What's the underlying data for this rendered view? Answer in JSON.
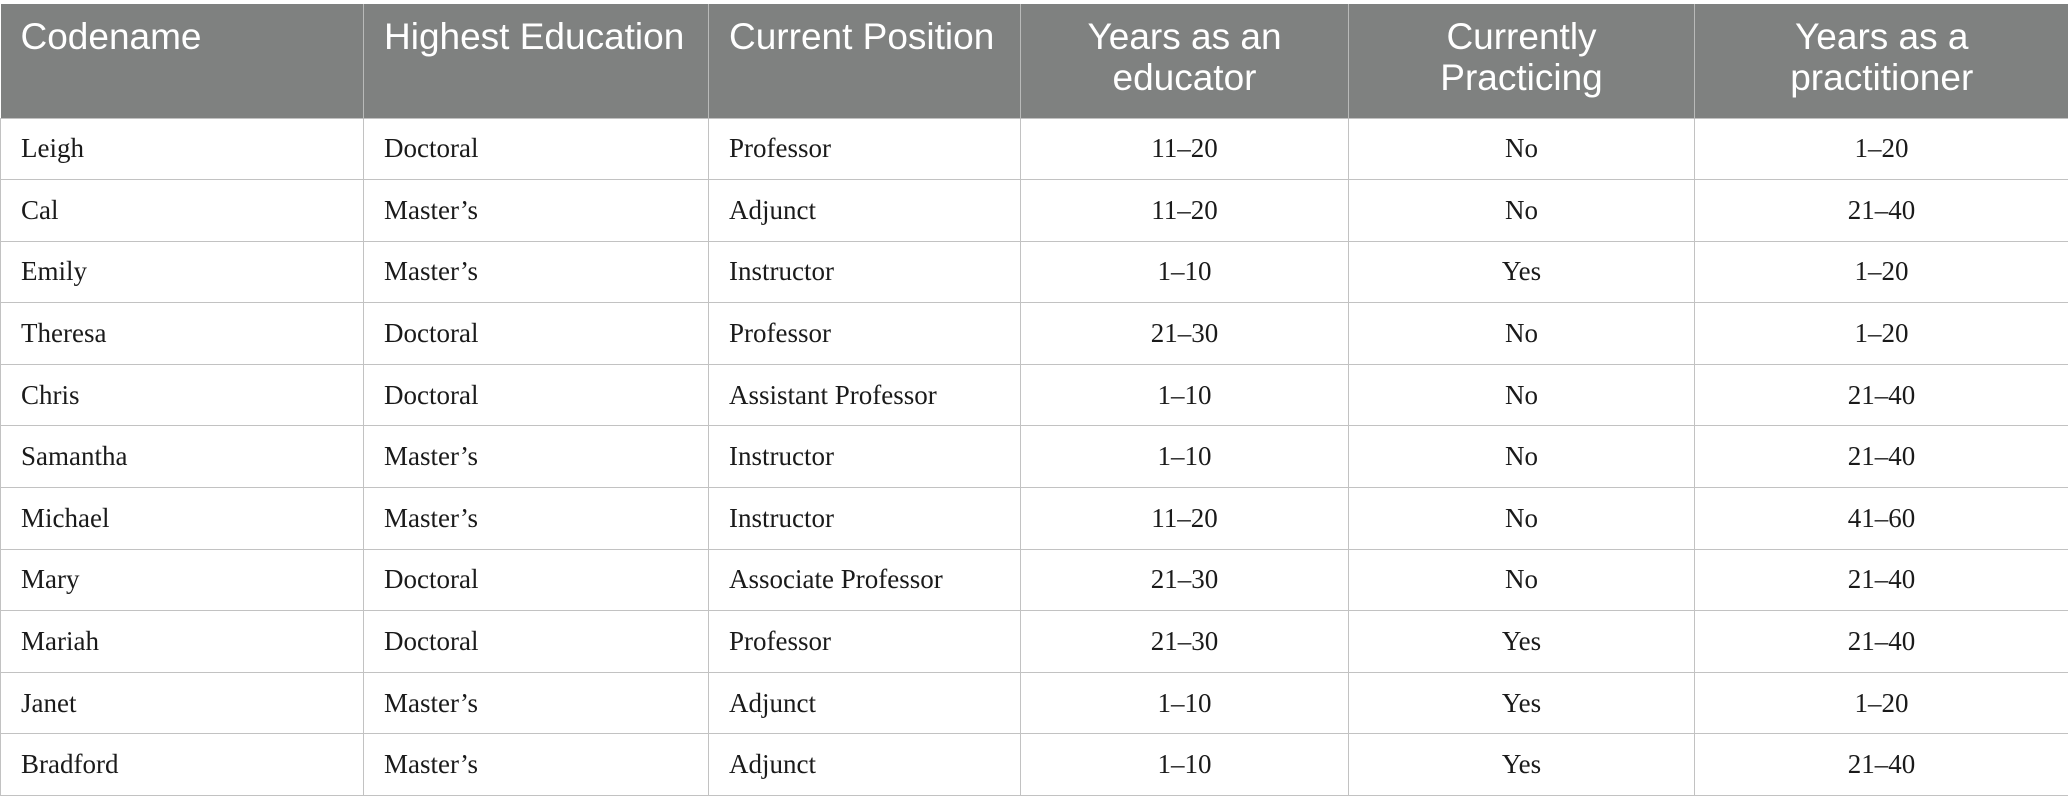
{
  "table": {
    "headers": [
      "Codename",
      "Highest Education",
      "Current Position",
      "Years as an educator",
      "Currently Practicing",
      "Years as a practitioner"
    ],
    "rows": [
      [
        "Leigh",
        "Doctoral",
        "Professor",
        "11–20",
        "No",
        "1–20"
      ],
      [
        "Cal",
        "Master’s",
        "Adjunct",
        "11–20",
        "No",
        "21–40"
      ],
      [
        "Emily",
        "Master’s",
        "Instructor",
        "1–10",
        "Yes",
        "1–20"
      ],
      [
        "Theresa",
        "Doctoral",
        "Professor",
        "21–30",
        "No",
        "1–20"
      ],
      [
        "Chris",
        "Doctoral",
        "Assistant Professor",
        "1–10",
        "No",
        "21–40"
      ],
      [
        "Samantha",
        "Master’s",
        "Instructor",
        "1–10",
        "No",
        "21–40"
      ],
      [
        "Michael",
        "Master’s",
        "Instructor",
        "11–20",
        "No",
        "41–60"
      ],
      [
        "Mary",
        "Doctoral",
        "Associate Professor",
        "21–30",
        "No",
        "21–40"
      ],
      [
        "Mariah",
        "Doctoral",
        "Professor",
        "21–30",
        "Yes",
        "21–40"
      ],
      [
        "Janet",
        "Master’s",
        "Adjunct",
        "1–10",
        "Yes",
        "1–20"
      ],
      [
        "Bradford",
        "Master’s",
        "Adjunct",
        "1–10",
        "Yes",
        "21–40"
      ]
    ]
  },
  "colors": {
    "header_background": "#7f8180",
    "header_text": "#ffffff",
    "grid_line": "#c2c2c2"
  }
}
